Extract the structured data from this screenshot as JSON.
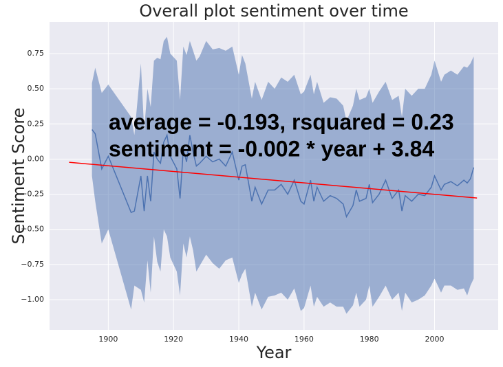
{
  "chart_data": {
    "type": "line",
    "title": "Overall plot sentiment over time",
    "x_label": "Year",
    "y_label": "Sentiment Score",
    "annotations": [
      "average = -0.193, rsquared = 0.23",
      "sentiment = -0.002 * year + 3.84"
    ],
    "color": "#4c72b0",
    "band_color": "#4c72b0",
    "x": [
      1895,
      1896,
      1898,
      1900,
      1907,
      1908,
      1910,
      1911,
      1912,
      1913,
      1914,
      1915,
      1916,
      1917,
      1918,
      1919,
      1921,
      1922,
      1923,
      1924,
      1925,
      1926,
      1927,
      1928,
      1930,
      1932,
      1934,
      1936,
      1938,
      1940,
      1941,
      1942,
      1944,
      1945,
      1947,
      1949,
      1951,
      1953,
      1955,
      1957,
      1959,
      1960,
      1962,
      1963,
      1964,
      1966,
      1968,
      1970,
      1972,
      1973,
      1975,
      1976,
      1977,
      1979,
      1980,
      1981,
      1983,
      1985,
      1987,
      1989,
      1990,
      1991,
      1993,
      1995,
      1997,
      1999,
      2000,
      2002,
      2003,
      2005,
      2007,
      2009,
      2010,
      2011,
      2012
    ],
    "values": [
      0.21,
      0.18,
      -0.07,
      0.02,
      -0.38,
      -0.37,
      -0.12,
      -0.37,
      -0.12,
      -0.3,
      0.05,
      0,
      -0.03,
      0.12,
      0.17,
      0.02,
      -0.07,
      -0.28,
      0.07,
      -0.02,
      0.17,
      0.05,
      -0.05,
      -0.03,
      0.02,
      -0.02,
      0,
      -0.05,
      0.05,
      -0.15,
      -0.05,
      -0.04,
      -0.3,
      -0.2,
      -0.32,
      -0.22,
      -0.22,
      -0.18,
      -0.25,
      -0.15,
      -0.3,
      -0.32,
      -0.15,
      -0.3,
      -0.2,
      -0.3,
      -0.26,
      -0.28,
      -0.32,
      -0.41,
      -0.33,
      -0.22,
      -0.3,
      -0.28,
      -0.18,
      -0.31,
      -0.25,
      -0.15,
      -0.28,
      -0.22,
      -0.37,
      -0.26,
      -0.3,
      -0.25,
      -0.26,
      -0.2,
      -0.12,
      -0.22,
      -0.18,
      -0.16,
      -0.19,
      -0.15,
      -0.17,
      -0.14,
      -0.06
    ],
    "lower": [
      -0.12,
      -0.3,
      -0.6,
      -0.5,
      -1.07,
      -0.9,
      -0.93,
      -1.02,
      -0.72,
      -0.95,
      -0.55,
      -0.73,
      -0.8,
      -0.5,
      -0.55,
      -0.7,
      -0.8,
      -0.97,
      -0.6,
      -0.7,
      -0.55,
      -0.65,
      -0.8,
      -0.76,
      -0.68,
      -0.74,
      -0.78,
      -0.72,
      -0.7,
      -0.88,
      -0.82,
      -0.78,
      -1.05,
      -0.95,
      -1.07,
      -0.98,
      -0.97,
      -0.95,
      -1.0,
      -0.92,
      -1.08,
      -1.06,
      -0.9,
      -1.05,
      -0.98,
      -1.05,
      -1.02,
      -1.05,
      -1.05,
      -1.1,
      -1.04,
      -0.95,
      -1.05,
      -1.0,
      -0.9,
      -1.05,
      -0.98,
      -0.9,
      -1.0,
      -0.95,
      -1.08,
      -0.95,
      -1.02,
      -1.0,
      -0.97,
      -0.9,
      -0.85,
      -0.95,
      -0.9,
      -0.9,
      -0.93,
      -0.92,
      -0.97,
      -0.9,
      -0.85
    ],
    "upper": [
      0.54,
      0.65,
      0.47,
      0.53,
      0.3,
      0.17,
      0.68,
      0.2,
      0.5,
      0.37,
      0.7,
      0.72,
      0.71,
      0.84,
      0.87,
      0.75,
      0.7,
      0.42,
      0.8,
      0.74,
      0.84,
      0.77,
      0.7,
      0.73,
      0.84,
      0.78,
      0.79,
      0.77,
      0.8,
      0.6,
      0.74,
      0.68,
      0.43,
      0.55,
      0.42,
      0.55,
      0.5,
      0.58,
      0.55,
      0.6,
      0.46,
      0.48,
      0.6,
      0.46,
      0.55,
      0.4,
      0.44,
      0.43,
      0.38,
      0.27,
      0.38,
      0.5,
      0.42,
      0.44,
      0.5,
      0.4,
      0.48,
      0.55,
      0.42,
      0.45,
      0.3,
      0.5,
      0.45,
      0.5,
      0.5,
      0.6,
      0.7,
      0.55,
      0.6,
      0.63,
      0.6,
      0.66,
      0.65,
      0.68,
      0.73
    ],
    "fit": {
      "x": [
        1888,
        2013
      ],
      "values": [
        -0.023,
        -0.277
      ],
      "color": "#ff0000"
    },
    "xlim": [
      1882,
      2019.5
    ],
    "ylim": [
      -1.215,
      0.975
    ],
    "xticks": [
      1900,
      1920,
      1940,
      1960,
      1980,
      2000
    ],
    "yticks": [
      {
        "value": -1,
        "label": "−1.00"
      },
      {
        "value": -0.75,
        "label": "−0.75"
      },
      {
        "value": -0.5,
        "label": "−0.50"
      },
      {
        "value": -0.25,
        "label": "−0.25"
      },
      {
        "value": 0,
        "label": "0.00"
      },
      {
        "value": 0.25,
        "label": "0.25"
      },
      {
        "value": 0.5,
        "label": "0.50"
      },
      {
        "value": 0.75,
        "label": "0.75"
      }
    ],
    "grid": true
  }
}
